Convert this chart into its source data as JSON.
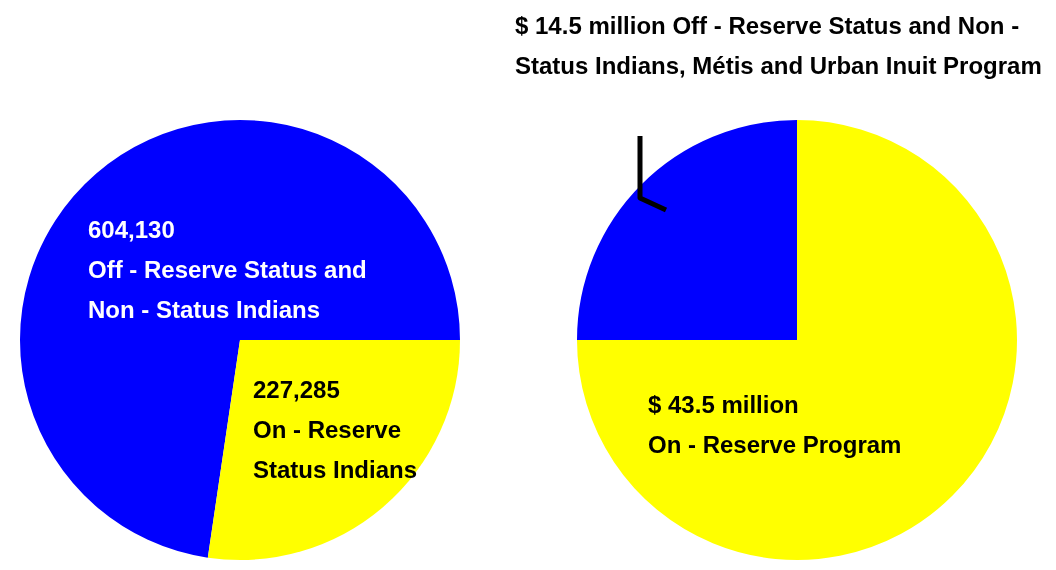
{
  "chart_data": [
    {
      "type": "pie",
      "categories": [
        "Off - Reserve Status and Non - Status Indians",
        "On - Reserve Status Indians"
      ],
      "values": [
        604130,
        227285
      ],
      "value_labels": [
        "604,130",
        "227,285"
      ],
      "colors": [
        "#0000ff",
        "#ffff00"
      ]
    },
    {
      "type": "pie",
      "categories": [
        "Off - Reserve Status and Non - Status Indians, Métis and Urban Inuit Program",
        "On - Reserve Program"
      ],
      "values": [
        14.5,
        43.5
      ],
      "value_labels": [
        "$ 14.5 million",
        "$ 43.5 million"
      ],
      "colors": [
        "#0000ff",
        "#ffff00"
      ]
    }
  ]
}
